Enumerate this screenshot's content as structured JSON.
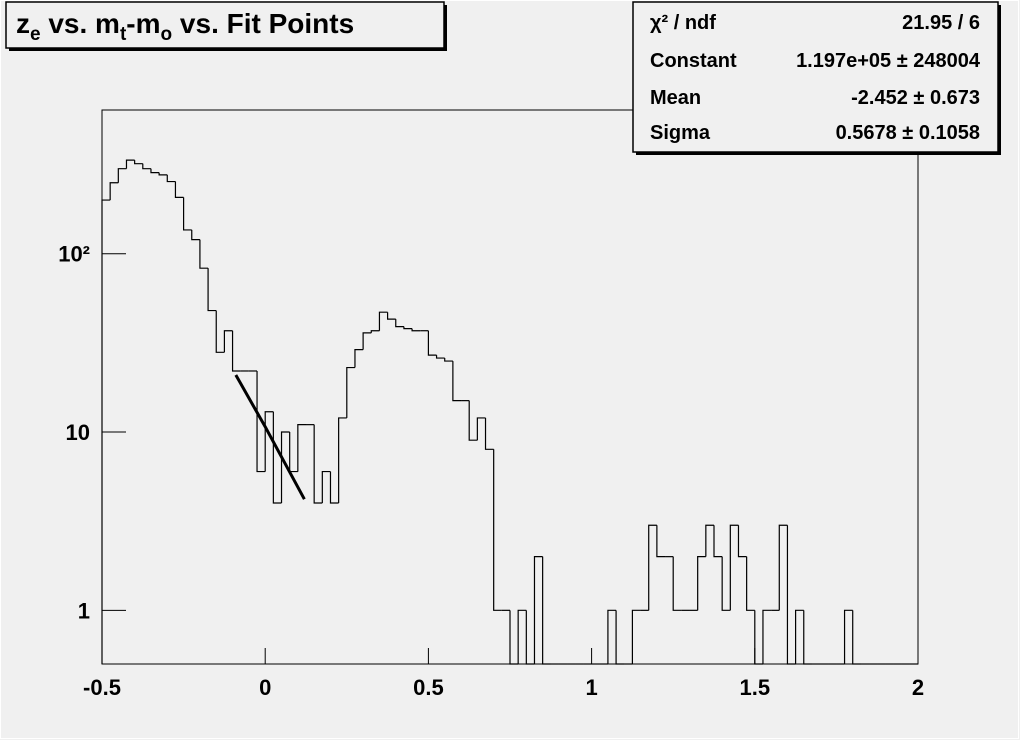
{
  "chart_data": {
    "type": "histogram",
    "title": [
      "z",
      "e",
      " vs. m",
      "t",
      "-m",
      "o",
      " vs. Fit Points"
    ],
    "bins": [
      -0.5,
      -0.475,
      -0.45,
      -0.425,
      -0.4,
      -0.375,
      -0.35,
      -0.325,
      -0.3,
      -0.275,
      -0.25,
      -0.225,
      -0.2,
      -0.175,
      -0.15,
      -0.125,
      -0.1,
      -0.075,
      -0.05,
      -0.025,
      0,
      0.025,
      0.05,
      0.075,
      0.1,
      0.125,
      0.15,
      0.175,
      0.2,
      0.225,
      0.25,
      0.275,
      0.3,
      0.325,
      0.35,
      0.375,
      0.4,
      0.425,
      0.45,
      0.475,
      0.5,
      0.525,
      0.55,
      0.575,
      0.6,
      0.625,
      0.65,
      0.675,
      0.7,
      0.725,
      0.75,
      0.775,
      0.8,
      0.825,
      0.85,
      0.875,
      0.9,
      0.925,
      0.95,
      0.975,
      1,
      1.025,
      1.05,
      1.075,
      1.1,
      1.125,
      1.15,
      1.175,
      1.2,
      1.225,
      1.25,
      1.275,
      1.3,
      1.325,
      1.35,
      1.375,
      1.4,
      1.425,
      1.45,
      1.475,
      1.5,
      1.525,
      1.55,
      1.575,
      1.6,
      1.625,
      1.65,
      1.675,
      1.7,
      1.725,
      1.75,
      1.775,
      1.8,
      1.825,
      1.85,
      1.875,
      1.9,
      1.925,
      1.95,
      1.975,
      2
    ],
    "values": [
      200,
      250,
      300,
      335,
      320,
      300,
      285,
      277,
      254,
      207,
      136,
      120,
      83,
      48,
      28,
      37,
      22,
      22,
      22,
      6,
      13,
      4,
      10,
      6,
      11,
      11,
      4,
      6,
      4,
      12,
      23,
      29,
      36,
      37,
      47,
      43,
      39,
      38,
      37,
      37,
      27,
      26,
      25,
      15,
      15,
      9,
      12,
      8,
      1,
      1,
      0,
      1,
      0,
      2,
      0,
      0,
      0,
      0,
      0,
      0,
      0,
      0,
      1,
      0,
      0,
      1,
      1,
      3,
      2,
      2,
      1,
      1,
      1,
      2,
      3,
      2,
      1,
      3,
      2,
      1,
      0,
      1,
      1,
      3,
      0,
      1,
      0,
      0,
      0,
      0,
      0,
      1,
      0,
      0,
      0,
      0,
      0,
      0,
      0,
      0
    ],
    "color": "#000000",
    "fit": {
      "x": [
        -0.09,
        0,
        0.12
      ],
      "values": [
        20.9,
        10.7,
        4.2
      ],
      "color": "#000000"
    },
    "xlim": [
      -0.5,
      2
    ],
    "xticks": [
      -0.5,
      0,
      0.5,
      1,
      1.5,
      2
    ],
    "ylim": [
      0.5,
      640
    ],
    "yticks": [
      1,
      10,
      {
        "value": 100,
        "label": "10²"
      }
    ],
    "log_y": true,
    "stats": [
      [
        "χ² / ndf",
        "21.95 / 6"
      ],
      [
        "Constant",
        "1.197e+05 ± 248004"
      ],
      [
        "Mean",
        "-2.452 ± 0.673"
      ],
      [
        "Sigma",
        "0.5678 ± 0.1058"
      ]
    ]
  }
}
